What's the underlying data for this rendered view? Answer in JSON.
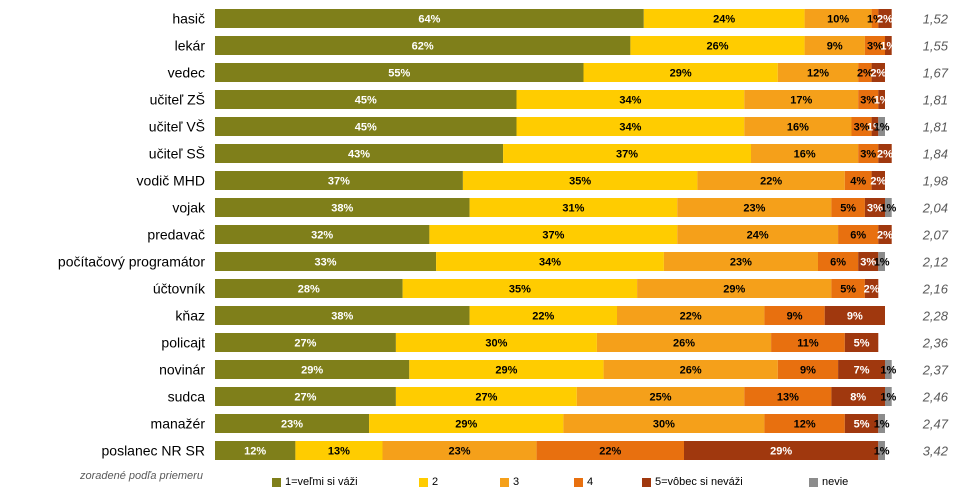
{
  "chart_data": {
    "type": "bar",
    "orientation": "horizontal",
    "stacked": true,
    "normalized": true,
    "xlim": [
      0,
      100
    ],
    "unit": "%",
    "sort_note": "zoradené podľa priemeru",
    "categories": [
      "hasič",
      "lekár",
      "vedec",
      "učiteľ ZŠ",
      "učiteľ VŠ",
      "učiteľ SŠ",
      "vodič MHD",
      "vojak",
      "predavač",
      "počítačový programátor",
      "účtovník",
      "kňaz",
      "policajt",
      "novinár",
      "sudca",
      "manažér",
      "poslanec NR SR"
    ],
    "means": [
      "1,52",
      "1,55",
      "1,67",
      "1,81",
      "1,81",
      "1,84",
      "1,98",
      "2,04",
      "2,07",
      "2,12",
      "2,16",
      "2,28",
      "2,36",
      "2,37",
      "2,46",
      "2,47",
      "3,42"
    ],
    "series": [
      {
        "name": "1=veľmi si váži",
        "color": "#7f7f1a",
        "label_color": "#ffffff",
        "values": [
          64,
          62,
          55,
          45,
          45,
          43,
          37,
          38,
          32,
          33,
          28,
          38,
          27,
          29,
          27,
          23,
          12
        ]
      },
      {
        "name": "2",
        "color": "#ffcc00",
        "label_color": "#000000",
        "values": [
          24,
          26,
          29,
          34,
          34,
          37,
          35,
          31,
          37,
          34,
          35,
          22,
          30,
          29,
          27,
          29,
          13
        ]
      },
      {
        "name": "3",
        "color": "#f5a01a",
        "label_color": "#000000",
        "values": [
          10,
          9,
          12,
          17,
          16,
          16,
          22,
          23,
          24,
          23,
          29,
          22,
          26,
          26,
          25,
          30,
          23
        ]
      },
      {
        "name": "4",
        "color": "#e8700f",
        "label_color": "#000000",
        "values": [
          1,
          3,
          2,
          3,
          3,
          3,
          4,
          5,
          6,
          6,
          5,
          9,
          11,
          9,
          13,
          12,
          22
        ]
      },
      {
        "name": "5=vôbec si neváži",
        "color": "#a0380e",
        "label_color": "#ffffff",
        "values": [
          2,
          1,
          2,
          1,
          1,
          2,
          2,
          3,
          2,
          3,
          2,
          9,
          5,
          7,
          8,
          5,
          29
        ]
      },
      {
        "name": "nevie",
        "color": "#8c8c8c",
        "label_color": "#000000",
        "values": [
          0,
          0,
          0,
          0,
          1,
          0,
          0,
          1,
          0,
          1,
          0,
          0,
          0,
          1,
          1,
          1,
          1
        ]
      }
    ]
  }
}
